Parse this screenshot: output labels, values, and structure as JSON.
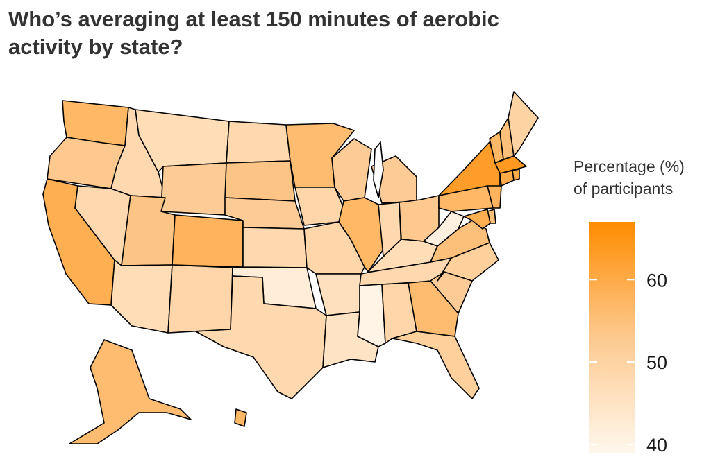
{
  "title": "Who’s averaging at least 150 minutes of aerobic activity by state?",
  "legend": {
    "title_line1": "Percentage (%)",
    "title_line2": "of participants",
    "min": 39,
    "max": 67,
    "ticks": [
      40,
      50,
      60
    ],
    "tick_labels": [
      "40",
      "50",
      "60"
    ],
    "color_low": "#fff7ec",
    "color_high": "#ff8c00"
  },
  "chart_data": {
    "type": "choropleth",
    "value_label": "Percentage (%) of participants",
    "states": [
      {
        "state": "Washington",
        "value": 57
      },
      {
        "state": "Oregon",
        "value": 53
      },
      {
        "state": "California",
        "value": 59
      },
      {
        "state": "Nevada",
        "value": 48
      },
      {
        "state": "Idaho",
        "value": 48
      },
      {
        "state": "Montana",
        "value": 47
      },
      {
        "state": "Wyoming",
        "value": 52
      },
      {
        "state": "Utah",
        "value": 54
      },
      {
        "state": "Arizona",
        "value": 47
      },
      {
        "state": "Colorado",
        "value": 58
      },
      {
        "state": "New Mexico",
        "value": 49
      },
      {
        "state": "North Dakota",
        "value": 48
      },
      {
        "state": "South Dakota",
        "value": 54
      },
      {
        "state": "Nebraska",
        "value": 52
      },
      {
        "state": "Kansas",
        "value": 48
      },
      {
        "state": "Oklahoma",
        "value": 42
      },
      {
        "state": "Texas",
        "value": 48
      },
      {
        "state": "Minnesota",
        "value": 56
      },
      {
        "state": "Iowa",
        "value": 49
      },
      {
        "state": "Missouri",
        "value": 49
      },
      {
        "state": "Arkansas",
        "value": 46
      },
      {
        "state": "Louisiana",
        "value": 45
      },
      {
        "state": "Wisconsin",
        "value": 52
      },
      {
        "state": "Illinois",
        "value": 57
      },
      {
        "state": "Michigan",
        "value": 52
      },
      {
        "state": "Indiana",
        "value": 48
      },
      {
        "state": "Ohio",
        "value": 53
      },
      {
        "state": "Kentucky",
        "value": 47
      },
      {
        "state": "Tennessee",
        "value": 48
      },
      {
        "state": "Mississippi",
        "value": 40
      },
      {
        "state": "Alabama",
        "value": 49
      },
      {
        "state": "Georgia",
        "value": 56
      },
      {
        "state": "Florida",
        "value": 51
      },
      {
        "state": "South Carolina",
        "value": 52
      },
      {
        "state": "North Carolina",
        "value": 51
      },
      {
        "state": "Virginia",
        "value": 55
      },
      {
        "state": "West Virginia",
        "value": 41
      },
      {
        "state": "Pennsylvania",
        "value": 57
      },
      {
        "state": "New York",
        "value": 63
      },
      {
        "state": "Vermont",
        "value": 57
      },
      {
        "state": "New Hampshire",
        "value": 55
      },
      {
        "state": "Maine",
        "value": 50
      },
      {
        "state": "Massachusetts",
        "value": 64
      },
      {
        "state": "Connecticut",
        "value": 60
      },
      {
        "state": "Rhode Island",
        "value": 60
      },
      {
        "state": "New Jersey",
        "value": 58
      },
      {
        "state": "Delaware",
        "value": 55
      },
      {
        "state": "Maryland",
        "value": 59
      },
      {
        "state": "Alaska",
        "value": 56
      },
      {
        "state": "Hawaii",
        "value": 57
      }
    ]
  }
}
